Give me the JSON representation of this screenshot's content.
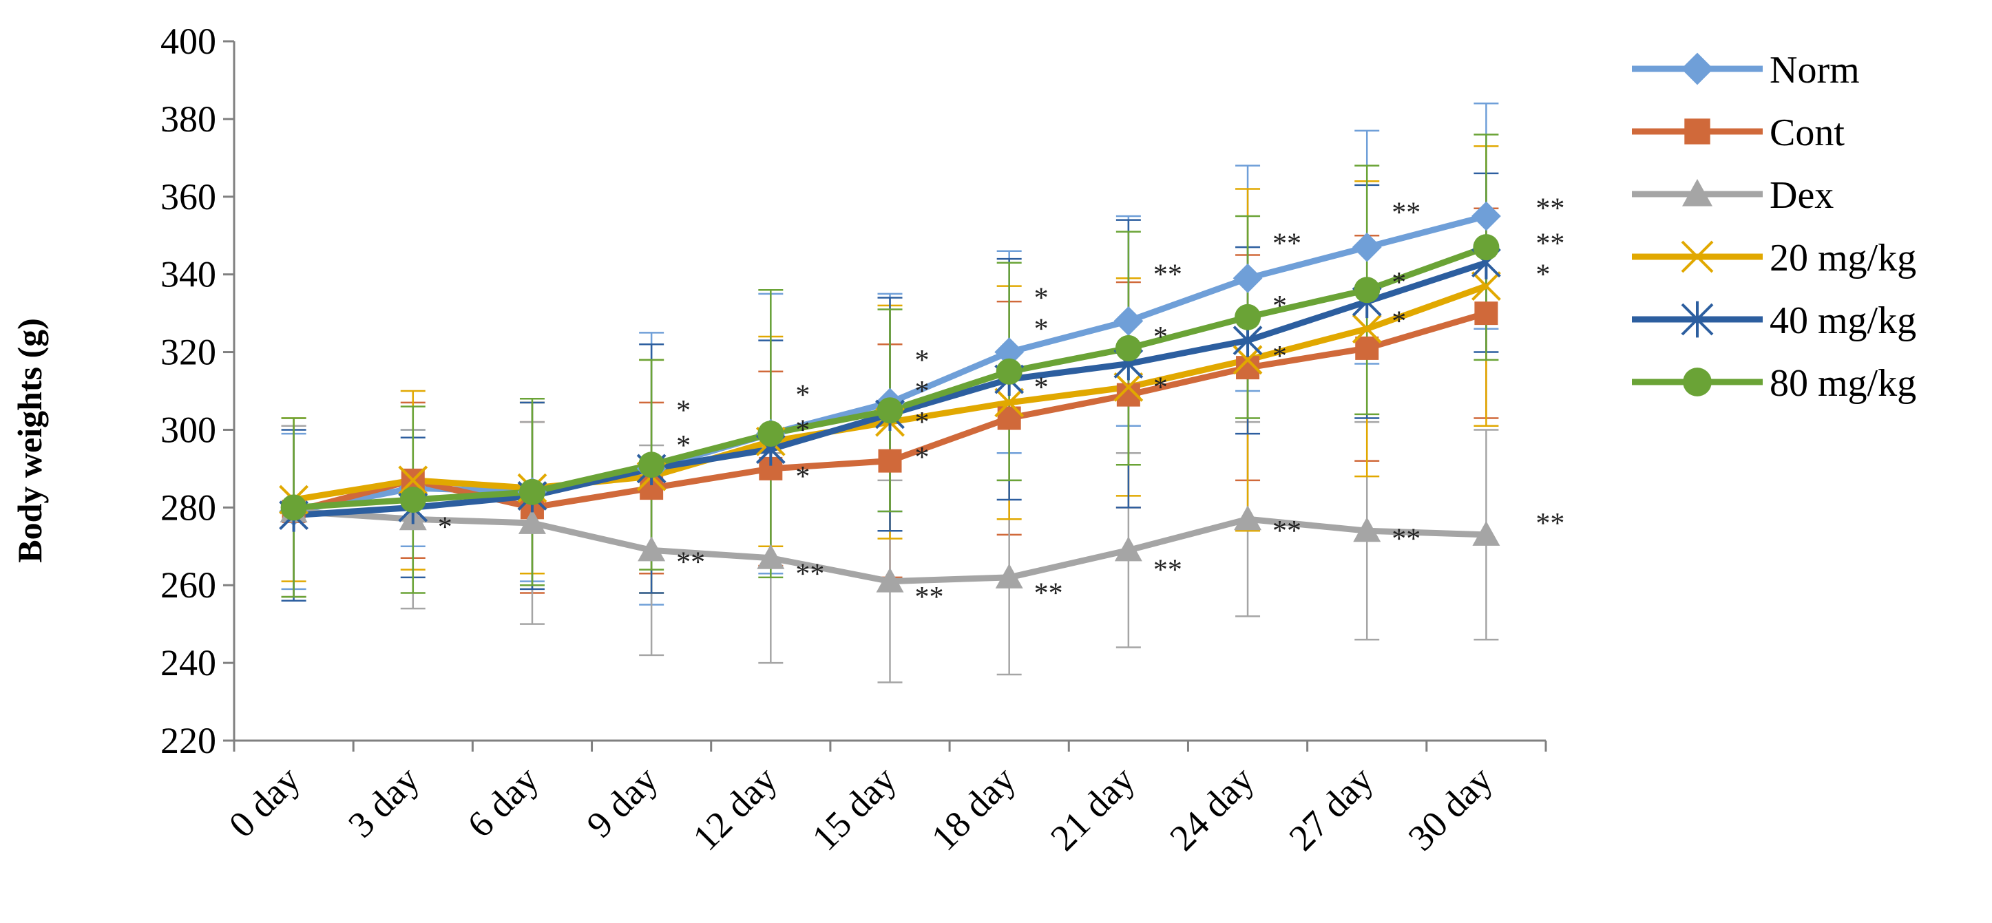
{
  "chart_data": {
    "type": "line",
    "title": "",
    "xlabel": "",
    "ylabel": "Body weights (g)",
    "ylim": [
      220,
      400
    ],
    "yticks": [
      220,
      240,
      260,
      280,
      300,
      320,
      340,
      360,
      380,
      400
    ],
    "categories": [
      "0 day",
      "3 day",
      "6 day",
      "9 day",
      "12 day",
      "15 day",
      "18 day",
      "21 day",
      "24 day",
      "27 day",
      "30 day"
    ],
    "legend_position": "right",
    "series": [
      {
        "name": "Norm",
        "color": "#6F9FD8",
        "marker": "diamond",
        "values": [
          279,
          285,
          284,
          290,
          299,
          307,
          320,
          328,
          339,
          347,
          355
        ],
        "errors": [
          20,
          15,
          23,
          35,
          36,
          28,
          26,
          27,
          29,
          30,
          29
        ]
      },
      {
        "name": "Cont",
        "color": "#D0693A",
        "marker": "square",
        "values": [
          279,
          287,
          280,
          285,
          290,
          292,
          303,
          309,
          316,
          321,
          330
        ],
        "errors": [
          22,
          20,
          22,
          22,
          25,
          30,
          30,
          29,
          29,
          29,
          27
        ]
      },
      {
        "name": "Dex",
        "color": "#A5A5A5",
        "marker": "triangle",
        "values": [
          279,
          277,
          276,
          269,
          267,
          261,
          262,
          269,
          277,
          274,
          273
        ],
        "errors": [
          22,
          23,
          26,
          27,
          27,
          26,
          25,
          25,
          25,
          28,
          27
        ]
      },
      {
        "name": "20 mg/kg",
        "color": "#E1A800",
        "marker": "x",
        "values": [
          282,
          287,
          285,
          288,
          297,
          302,
          307,
          311,
          318,
          326,
          337
        ],
        "errors": [
          21,
          23,
          22,
          30,
          27,
          30,
          30,
          28,
          44,
          38,
          36
        ]
      },
      {
        "name": "40 mg/kg",
        "color": "#2C5E9F",
        "marker": "star",
        "values": [
          278,
          280,
          283,
          290,
          295,
          304,
          313,
          317,
          323,
          333,
          343
        ],
        "errors": [
          22,
          18,
          24,
          32,
          28,
          30,
          31,
          37,
          24,
          30,
          23
        ]
      },
      {
        "name": "80 mg/kg",
        "color": "#6AA336",
        "marker": "circle",
        "values": [
          280,
          282,
          284,
          291,
          299,
          305,
          315,
          321,
          329,
          336,
          347
        ],
        "errors": [
          23,
          24,
          24,
          27,
          37,
          26,
          28,
          30,
          26,
          32,
          29
        ]
      }
    ],
    "annotations": [
      {
        "text": "*",
        "x_index": 1,
        "y": 275
      },
      {
        "text": "*",
        "x_index": 3,
        "y": 305
      },
      {
        "text": "*",
        "x_index": 3,
        "y": 296
      },
      {
        "text": "**",
        "x_index": 3,
        "y": 266
      },
      {
        "text": "*",
        "x_index": 4,
        "y": 309
      },
      {
        "text": "*",
        "x_index": 4,
        "y": 300
      },
      {
        "text": "*",
        "x_index": 4,
        "y": 288
      },
      {
        "text": "**",
        "x_index": 4,
        "y": 263
      },
      {
        "text": "*",
        "x_index": 5,
        "y": 318
      },
      {
        "text": "*",
        "x_index": 5,
        "y": 310
      },
      {
        "text": "*",
        "x_index": 5,
        "y": 302
      },
      {
        "text": "*",
        "x_index": 5,
        "y": 293
      },
      {
        "text": "**",
        "x_index": 5,
        "y": 257
      },
      {
        "text": "*",
        "x_index": 6,
        "y": 334
      },
      {
        "text": "*",
        "x_index": 6,
        "y": 326
      },
      {
        "text": "*",
        "x_index": 6,
        "y": 311
      },
      {
        "text": "**",
        "x_index": 6,
        "y": 258
      },
      {
        "text": "**",
        "x_index": 7,
        "y": 340
      },
      {
        "text": "*",
        "x_index": 7,
        "y": 324
      },
      {
        "text": "*",
        "x_index": 7,
        "y": 311
      },
      {
        "text": "**",
        "x_index": 7,
        "y": 264
      },
      {
        "text": "**",
        "x_index": 8,
        "y": 348
      },
      {
        "text": "*",
        "x_index": 8,
        "y": 332
      },
      {
        "text": "*",
        "x_index": 8,
        "y": 319
      },
      {
        "text": "**",
        "x_index": 8,
        "y": 274
      },
      {
        "text": "**",
        "x_index": 9,
        "y": 356
      },
      {
        "text": "*",
        "x_index": 9,
        "y": 338
      },
      {
        "text": "*",
        "x_index": 9,
        "y": 328
      },
      {
        "text": "**",
        "x_index": 9,
        "y": 272
      },
      {
        "text": "**",
        "x_index": 10,
        "y": 357
      },
      {
        "text": "**",
        "x_index": 10,
        "y": 348
      },
      {
        "text": "*",
        "x_index": 10,
        "y": 340
      },
      {
        "text": "**",
        "x_index": 10,
        "y": 276
      }
    ]
  }
}
